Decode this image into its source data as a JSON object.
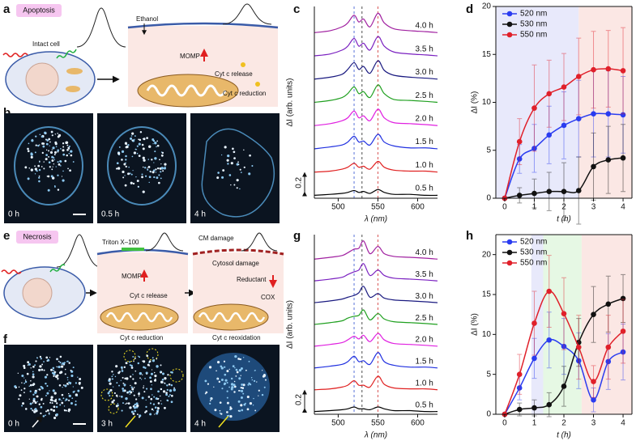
{
  "panel_labels": [
    "a",
    "b",
    "c",
    "d",
    "e",
    "f",
    "g",
    "h"
  ],
  "apoptosis": {
    "title": "Apoptosis",
    "intact_cell": "Intact cell",
    "ethanol": "Ethanol",
    "momp": "MOMP",
    "release": "Cyt c release",
    "reduction": "Cyt c reduction",
    "times": [
      "0 h",
      "0.5 h",
      "4 h"
    ]
  },
  "necrosis": {
    "title": "Necrosis",
    "triton": "Triton X–100",
    "momp": "MOMP",
    "release": "Cyt c release",
    "reduction": "Cyt c reduction",
    "cm_damage": "CM damage",
    "cytosol_damage": "Cytosol damage",
    "reductant": "Reductant",
    "cox": "COX",
    "reoxidation": "Cyt c reoxidation",
    "times": [
      "0 h",
      "3 h",
      "4 h"
    ]
  },
  "chart_data": [
    {
      "type": "spectra",
      "xlabel": "λ (nm)",
      "ylabel": "ΔI (arb. units)",
      "xlim": [
        470,
        625
      ],
      "xticks": [
        500,
        550,
        600
      ],
      "ylim": [
        -0.03,
        1.95
      ],
      "scale_bar": 0.2,
      "reference_lines": [
        {
          "x": 520,
          "color": "#3050d0"
        },
        {
          "x": 530,
          "color": "#222222"
        },
        {
          "x": 550,
          "color": "#d03030"
        }
      ],
      "x": [
        470,
        490,
        505,
        512,
        520,
        526,
        532,
        540,
        550,
        558,
        570,
        590,
        610,
        625
      ],
      "series": [
        {
          "name": "0.5 h",
          "color": "#000000",
          "values": [
            0,
            0.01,
            0.02,
            0.03,
            0.05,
            0.03,
            0.04,
            0.02,
            0.06,
            0.03,
            0.01,
            0.01,
            0,
            0
          ]
        },
        {
          "name": "1.0 h",
          "color": "#e02020",
          "values": [
            0,
            0.01,
            0.03,
            0.05,
            0.09,
            0.05,
            0.06,
            0.03,
            0.11,
            0.05,
            0.02,
            0.01,
            0.01,
            0
          ]
        },
        {
          "name": "1.5 h",
          "color": "#2030e0",
          "values": [
            0,
            0.02,
            0.04,
            0.07,
            0.13,
            0.07,
            0.08,
            0.04,
            0.15,
            0.07,
            0.03,
            0.01,
            0.01,
            0
          ]
        },
        {
          "name": "2.0 h",
          "color": "#e020e0",
          "values": [
            0,
            0.02,
            0.05,
            0.08,
            0.15,
            0.08,
            0.1,
            0.05,
            0.17,
            0.08,
            0.03,
            0.02,
            0.01,
            0
          ]
        },
        {
          "name": "2.5 h",
          "color": "#20a020",
          "values": [
            0,
            0.02,
            0.05,
            0.09,
            0.16,
            0.09,
            0.11,
            0.05,
            0.18,
            0.09,
            0.03,
            0.02,
            0.01,
            0
          ]
        },
        {
          "name": "3.0 h",
          "color": "#1a1a80",
          "values": [
            0,
            0.02,
            0.05,
            0.1,
            0.17,
            0.1,
            0.13,
            0.06,
            0.19,
            0.09,
            0.04,
            0.02,
            0.01,
            0
          ]
        },
        {
          "name": "3.5 h",
          "color": "#7a20c0",
          "values": [
            0,
            0.02,
            0.06,
            0.1,
            0.18,
            0.1,
            0.13,
            0.06,
            0.2,
            0.1,
            0.04,
            0.02,
            0.01,
            0
          ]
        },
        {
          "name": "4.0 h",
          "color": "#a020a0",
          "values": [
            0,
            0.02,
            0.06,
            0.1,
            0.18,
            0.11,
            0.14,
            0.06,
            0.2,
            0.1,
            0.04,
            0.02,
            0.01,
            0
          ]
        }
      ]
    },
    {
      "type": "line",
      "xlabel": "t (h)",
      "ylabel": "ΔI (%)",
      "xlim": [
        -0.3,
        4.3
      ],
      "ylim": [
        0,
        20
      ],
      "xticks": [
        0,
        1,
        2,
        3,
        4
      ],
      "yticks": [
        0,
        5,
        10,
        15,
        20
      ],
      "legend": "upper left",
      "regions": [
        {
          "from": -0.3,
          "to": 2.5,
          "color": "#e8e9fb"
        },
        {
          "from": 2.5,
          "to": 4.3,
          "color": "#fbe7e4"
        }
      ],
      "x": [
        0,
        0.5,
        1,
        1.5,
        2,
        2.5,
        3,
        3.5,
        4
      ],
      "series": [
        {
          "name": "520 nm",
          "color": "#2a3cf0",
          "values": [
            0,
            4.1,
            5.2,
            6.6,
            7.6,
            8.3,
            8.8,
            8.8,
            8.7
          ],
          "errors": [
            0,
            1.5,
            2.5,
            3,
            3.5,
            4,
            4.5,
            4.5,
            4
          ]
        },
        {
          "name": "530 nm",
          "color": "#111111",
          "values": [
            0,
            0.3,
            0.5,
            0.7,
            0.7,
            0.8,
            3.3,
            4.0,
            4.2
          ],
          "errors": [
            0,
            0.8,
            1.5,
            2,
            3,
            3.5,
            3.5,
            3.5,
            3.5
          ]
        },
        {
          "name": "550 nm",
          "color": "#e0202a",
          "values": [
            0,
            5.9,
            9.4,
            10.9,
            11.6,
            12.7,
            13.4,
            13.5,
            13.3
          ],
          "errors": [
            0,
            2.4,
            4.5,
            3.5,
            3.5,
            4,
            4,
            4,
            4.5
          ]
        }
      ]
    },
    {
      "type": "spectra",
      "xlabel": "λ (nm)",
      "ylabel": "ΔI (arb. units)",
      "xlim": [
        470,
        625
      ],
      "xticks": [
        500,
        550,
        600
      ],
      "ylim": [
        -0.03,
        1.95
      ],
      "scale_bar": 0.2,
      "reference_lines": [
        {
          "x": 520,
          "color": "#3050d0"
        },
        {
          "x": 530,
          "color": "#222222"
        },
        {
          "x": 550,
          "color": "#d03030"
        }
      ],
      "x": [
        470,
        490,
        505,
        512,
        520,
        526,
        532,
        540,
        550,
        558,
        570,
        590,
        610,
        625
      ],
      "series": [
        {
          "name": "0.5 h",
          "color": "#000000",
          "values": [
            0,
            0.01,
            0.02,
            0.03,
            0.05,
            0.03,
            0.03,
            0.02,
            0.05,
            0.03,
            0.01,
            0.01,
            0,
            0
          ]
        },
        {
          "name": "1.0 h",
          "color": "#e02020",
          "values": [
            0,
            0.01,
            0.03,
            0.05,
            0.1,
            0.05,
            0.05,
            0.03,
            0.15,
            0.06,
            0.02,
            0.01,
            0.01,
            0
          ]
        },
        {
          "name": "1.5 h",
          "color": "#2030e0",
          "values": [
            0,
            0.02,
            0.04,
            0.07,
            0.13,
            0.07,
            0.08,
            0.04,
            0.17,
            0.07,
            0.03,
            0.01,
            0.01,
            0
          ]
        },
        {
          "name": "2.0 h",
          "color": "#e020e0",
          "values": [
            0,
            0.02,
            0.04,
            0.07,
            0.11,
            0.08,
            0.12,
            0.05,
            0.14,
            0.07,
            0.03,
            0.02,
            0.01,
            0
          ]
        },
        {
          "name": "2.5 h",
          "color": "#20a020",
          "values": [
            0,
            0.02,
            0.04,
            0.07,
            0.09,
            0.1,
            0.16,
            0.05,
            0.12,
            0.06,
            0.03,
            0.02,
            0.01,
            0
          ]
        },
        {
          "name": "3.0 h",
          "color": "#1a1a80",
          "values": [
            0,
            0.02,
            0.04,
            0.06,
            0.08,
            0.11,
            0.18,
            0.06,
            0.1,
            0.05,
            0.03,
            0.02,
            0.01,
            0
          ]
        },
        {
          "name": "3.5 h",
          "color": "#7a20c0",
          "values": [
            0,
            0.02,
            0.04,
            0.07,
            0.1,
            0.12,
            0.19,
            0.06,
            0.12,
            0.06,
            0.03,
            0.02,
            0.01,
            0
          ]
        },
        {
          "name": "4.0 h",
          "color": "#a020a0",
          "values": [
            0,
            0.02,
            0.04,
            0.07,
            0.11,
            0.12,
            0.2,
            0.06,
            0.14,
            0.06,
            0.03,
            0.02,
            0.01,
            0
          ]
        }
      ]
    },
    {
      "type": "line",
      "xlabel": "t (h)",
      "ylabel": "ΔI (%)",
      "xlim": [
        -0.3,
        4.3
      ],
      "ylim": [
        0,
        22.5
      ],
      "xticks": [
        0,
        1,
        2,
        3,
        4
      ],
      "yticks": [
        0,
        5,
        10,
        15,
        20
      ],
      "legend": "upper left",
      "regions": [
        {
          "from": 0.9,
          "to": 1.3,
          "color": "#e8e9fb"
        },
        {
          "from": 1.3,
          "to": 2.6,
          "color": "#e6f8e4"
        },
        {
          "from": 2.6,
          "to": 4.3,
          "color": "#fbe7e4"
        }
      ],
      "x": [
        0,
        0.5,
        1,
        1.5,
        2,
        2.5,
        3,
        3.5,
        4
      ],
      "series": [
        {
          "name": "520 nm",
          "color": "#2a3cf0",
          "values": [
            0,
            3.3,
            7,
            9.3,
            8.5,
            6.7,
            1.8,
            6.6,
            7.8
          ],
          "errors": [
            0,
            1.5,
            2.5,
            3.5,
            3.5,
            3.5,
            1.5,
            3.5,
            3.5
          ]
        },
        {
          "name": "530 nm",
          "color": "#111111",
          "values": [
            0,
            0.6,
            0.8,
            1.2,
            3.5,
            9,
            12.5,
            13.8,
            14.5
          ],
          "errors": [
            0,
            0.8,
            1,
            1.5,
            2.5,
            3,
            3.5,
            3.5,
            3
          ]
        },
        {
          "name": "550 nm",
          "color": "#e0202a",
          "values": [
            0,
            5,
            11.4,
            15.4,
            12.6,
            8.4,
            4.1,
            8.4,
            10.4
          ],
          "errors": [
            0,
            2.5,
            4,
            4.5,
            4.5,
            4,
            2,
            4,
            4
          ]
        }
      ]
    }
  ]
}
